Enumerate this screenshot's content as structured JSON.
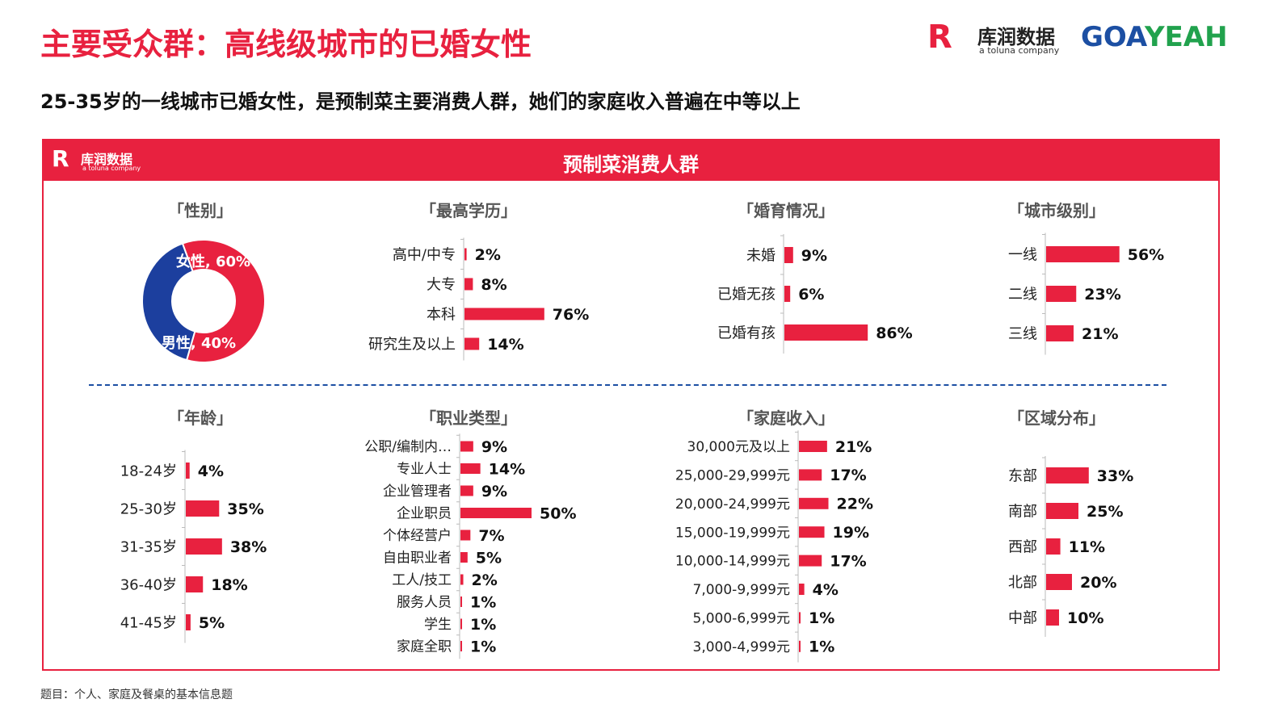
{
  "header": {
    "title": "主要受众群：高线级城市的已婚女性",
    "subtitle": "25-35岁的一线城市已婚女性，是预制菜主要消费人群，她们的家庭收入普遍在中等以上",
    "logo_kr_mark": "R",
    "logo_kr_name": "库润数据",
    "logo_kr_sub": "a toluna company",
    "logo_goa_left": "GOA",
    "logo_goa_right": "YEAH"
  },
  "panel": {
    "title": "预制菜消费人群",
    "logo_mark": "R",
    "logo_name": "库润数据",
    "logo_sub": "a toluna company"
  },
  "footnote": "题目：个人、家庭及餐桌的基本信息题",
  "colors": {
    "accent": "#e8213f",
    "blue": "#1c3f9e",
    "axis": "#bbbbbb"
  },
  "chart_data": [
    {
      "id": "gender",
      "type": "pie",
      "title": "「性别」",
      "slices": [
        {
          "label": "女性, 60%",
          "value": 60
        },
        {
          "label": "男性, 40%",
          "value": 40
        }
      ]
    },
    {
      "id": "education",
      "type": "bar",
      "title": "「最高学历」",
      "categories": [
        "高中/中专",
        "大专",
        "本科",
        "研究生及以上"
      ],
      "values": [
        2,
        8,
        76,
        14
      ],
      "labels": [
        "2%",
        "8%",
        "76%",
        "14%"
      ]
    },
    {
      "id": "marriage",
      "type": "bar",
      "title": "「婚育情况」",
      "categories": [
        "未婚",
        "已婚无孩",
        "已婚有孩"
      ],
      "values": [
        9,
        6,
        86
      ],
      "labels": [
        "9%",
        "6%",
        "86%"
      ]
    },
    {
      "id": "city",
      "type": "bar",
      "title": "「城市级别」",
      "categories": [
        "一线",
        "二线",
        "三线"
      ],
      "values": [
        56,
        23,
        21
      ],
      "labels": [
        "56%",
        "23%",
        "21%"
      ]
    },
    {
      "id": "age",
      "type": "bar",
      "title": "「年龄」",
      "categories": [
        "18-24岁",
        "25-30岁",
        "31-35岁",
        "36-40岁",
        "41-45岁"
      ],
      "values": [
        4,
        35,
        38,
        18,
        5
      ],
      "labels": [
        "4%",
        "35%",
        "38%",
        "18%",
        "5%"
      ]
    },
    {
      "id": "occupation",
      "type": "bar",
      "title": "「职业类型」",
      "categories": [
        "公职/编制内…",
        "专业人士",
        "企业管理者",
        "企业职员",
        "个体经营户",
        "自由职业者",
        "工人/技工",
        "服务人员",
        "学生",
        "家庭全职"
      ],
      "values": [
        9,
        14,
        9,
        50,
        7,
        5,
        2,
        1,
        1,
        1
      ],
      "labels": [
        "9%",
        "14%",
        "9%",
        "50%",
        "7%",
        "5%",
        "2%",
        "1%",
        "1%",
        "1%"
      ]
    },
    {
      "id": "income",
      "type": "bar",
      "title": "「家庭收入」",
      "categories": [
        "30,000元及以上",
        "25,000-29,999元",
        "20,000-24,999元",
        "15,000-19,999元",
        "10,000-14,999元",
        "7,000-9,999元",
        "5,000-6,999元",
        "3,000-4,999元"
      ],
      "values": [
        21,
        17,
        22,
        19,
        17,
        4,
        1,
        1
      ],
      "labels": [
        "21%",
        "17%",
        "22%",
        "19%",
        "17%",
        "4%",
        "1%",
        "1%"
      ]
    },
    {
      "id": "region",
      "type": "bar",
      "title": "「区域分布」",
      "categories": [
        "东部",
        "南部",
        "西部",
        "北部",
        "中部"
      ],
      "values": [
        33,
        25,
        11,
        20,
        10
      ],
      "labels": [
        "33%",
        "25%",
        "11%",
        "20%",
        "10%"
      ]
    }
  ]
}
